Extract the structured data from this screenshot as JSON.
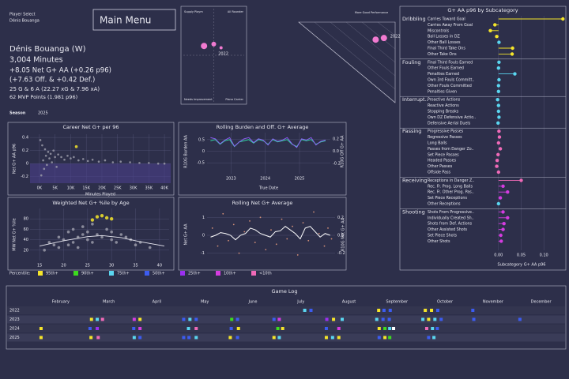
{
  "header": {
    "player_select": "Player Select",
    "player_select_value": "Dénis Bouanga",
    "menu": "Main Menu",
    "name": "Dénis Bouanga (W)",
    "minutes": "3,004 Minutes",
    "line1": "+8.05 Net G+ AA (+0.26 p96)",
    "line2": "(+7.63 Off. & +0.42 Def.)",
    "line3": "25 G & 6 A (22.27 xG & 7.96 xA)",
    "line4": "62 MVP Points (1.981 p96)",
    "season_label": "Season",
    "season": "2025"
  },
  "percentile_legend": {
    "title": "Percentile:",
    "items": [
      {
        "name": "95th+",
        "color": "#f5e52a"
      },
      {
        "name": "90th+",
        "color": "#3cdc1e"
      },
      {
        "name": "75th+",
        "color": "#5ad6f0"
      },
      {
        "name": "50th+",
        "color": "#3c5cf0"
      },
      {
        "name": "25th+",
        "color": "#9b30f0"
      },
      {
        "name": "10th+",
        "color": "#d43ce0"
      },
      {
        "name": "<10th",
        "color": "#f06ab8"
      }
    ]
  },
  "chart_data": [
    {
      "type": "quadrant",
      "quadrant_labels": [
        "Supply Playm",
        "All Rounder",
        "Needs Improvement",
        "Piano Carrier"
      ],
      "x": [
        0.47,
        0.5,
        0.49
      ],
      "y": [
        0.6,
        0.62,
        0.58
      ],
      "color": "#f07ad0",
      "point_label": "2022",
      "xlim": [
        0,
        1
      ],
      "ylim": [
        0,
        1
      ]
    },
    {
      "type": "triangle",
      "annotation": "More Good Performance",
      "x": [
        0.88,
        0.9
      ],
      "y": [
        0.9,
        0.92
      ],
      "color": "#f07ad0",
      "point_label": "2022",
      "xlim": [
        0,
        1
      ],
      "ylim": [
        0,
        1
      ]
    },
    {
      "type": "lollipop",
      "title": "G+ AA p96 by Subcategory",
      "x_label": "Subcategory G+ AA p96",
      "xlim": [
        -0.045,
        0.145
      ],
      "xticks": [
        {
          "value": 0,
          "label": "0.00"
        },
        0.05,
        {
          "value": 0.1,
          "label": "0.10"
        }
      ],
      "groups": [
        {
          "name": "Dribbling",
          "categories": [
            "Carries Toward Goal",
            "Carries Away From Goal",
            "Miscontrols",
            "Ball Losses in DZ",
            "Other Ball Losses",
            "Final Third Take Ons",
            "Other Take Ons"
          ],
          "values": [
            0.142,
            -0.008,
            -0.018,
            -0.004,
            0.001,
            0.031,
            0.03
          ],
          "colors": [
            "#f5e52a",
            "#f5e52a",
            "#f5e52a",
            "#f5e52a",
            "#5ad6f0",
            "#f5e52a",
            "#f5e52a"
          ]
        },
        {
          "name": "Fouling",
          "categories": [
            "Final Third Fouls Earned",
            "Other Fouls Earned",
            "Penalties Earned",
            "Own 3rd Fouls Committ..",
            "Other Fouls Committed",
            "Penalties Given"
          ],
          "values": [
            0.001,
            0,
            0.036,
            0.001,
            0,
            0
          ],
          "colors": [
            "#5ad6f0",
            "#5ad6f0",
            "#5ad6f0",
            "#5ad6f0",
            "#5ad6f0",
            "#5ad6f0"
          ]
        },
        {
          "name": "Interrupt..",
          "categories": [
            "Proactive Actions",
            "Reactive Actions",
            "Stopping Breaks",
            "Own DZ Defensive Actio..",
            "Defensive Aerial Duels"
          ],
          "values": [
            -0.002,
            0,
            0,
            0.001,
            -0.001
          ],
          "colors": [
            "#5ad6f0",
            "#5ad6f0",
            "#5ad6f0",
            "#5ad6f0",
            "#5ad6f0"
          ]
        },
        {
          "name": "Passing",
          "categories": [
            "Progressive Passes",
            "Regressive Passes",
            "Long Balls",
            "Passes from Danger Zo..",
            "Set Piece Passes",
            "Headed Passes",
            "Other Passes",
            "Offside Pass"
          ],
          "values": [
            0.001,
            0.002,
            0,
            0.004,
            -0.001,
            -0.003,
            -0.004,
            0
          ],
          "colors": [
            "#f06ab8",
            "#f06ab8",
            "#f06ab8",
            "#f06ab8",
            "#f06ab8",
            "#f06ab8",
            "#f06ab8",
            "#f06ab8"
          ]
        },
        {
          "name": "Receiving",
          "categories": [
            "Receptions in Danger Z..",
            "Rec. Fr. Prog. Long Balls",
            "Rec. Fr. Other Prog. Pas..",
            "Set Piece Receptions",
            "Other Receptions"
          ],
          "values": [
            0.05,
            0.01,
            0.02,
            0.004,
            0
          ],
          "colors": [
            "#f06ab8",
            "#d43ce0",
            "#d43ce0",
            "#d43ce0",
            "#5ad6f0"
          ]
        },
        {
          "name": "Shooting",
          "categories": [
            "Shots From Progressive..",
            "Individually Created Sh..",
            "Shots from Def. Actions",
            "Other Assisted Shots",
            "Set Piece Shots",
            "Other Shots"
          ],
          "values": [
            0.01,
            0.02,
            0.012,
            0.01,
            0.005,
            0.006
          ],
          "colors": [
            "#d43ce0",
            "#d43ce0",
            "#d43ce0",
            "#d43ce0",
            "#d43ce0",
            "#d43ce0"
          ]
        }
      ]
    },
    {
      "type": "scatter",
      "title": "Career Net G+ per 96",
      "x_label": "Minutes Played",
      "y_label": "Net G+ AA p96",
      "xlim": [
        -3000,
        42000
      ],
      "ylim": [
        -0.3,
        0.45
      ],
      "xticks": [
        {
          "value": 0,
          "label": "0K"
        },
        {
          "value": 5000,
          "label": "5K"
        },
        {
          "value": 10000,
          "label": "10K"
        },
        {
          "value": 15000,
          "label": "15K"
        },
        {
          "value": 20000,
          "label": "20K"
        },
        {
          "value": 25000,
          "label": "25K"
        },
        {
          "value": 30000,
          "label": "30K"
        },
        {
          "value": 35000,
          "label": "35K"
        },
        {
          "value": 40000,
          "label": "40K"
        }
      ],
      "yticks": [
        -0.2,
        0,
        0.2,
        0.4
      ],
      "points": {
        "color": "#9a9aa8",
        "x": [
          300,
          600,
          900,
          1200,
          1500,
          1800,
          2100,
          2400,
          2800,
          3200,
          3600,
          4000,
          4500,
          5000,
          5500,
          6000,
          7000,
          8000,
          9000,
          10000,
          11000,
          12500,
          14000,
          15500,
          17000,
          19000,
          21000,
          23500,
          26000,
          29000,
          32000,
          35000,
          38000,
          40000
        ],
        "y": [
          0.36,
          -0.18,
          0.28,
          0.05,
          -0.08,
          0.22,
          0.12,
          -0.02,
          0.18,
          0.08,
          0.15,
          0.02,
          0.2,
          0.1,
          -0.05,
          0.14,
          0.1,
          0.06,
          0.12,
          0.08,
          0.1,
          0.05,
          0.07,
          0.04,
          0.06,
          0.03,
          0.05,
          0.02,
          0.03,
          0.02,
          0.01,
          0.01,
          0,
          0
        ]
      },
      "highlight": {
        "color": "#f5e52a",
        "x": [
          11800
        ],
        "y": [
          0.26
        ]
      }
    },
    {
      "type": "dual_line",
      "title": "Rolling Burden and Off. G+ Average",
      "x_label": "True Date",
      "y_label": "R10G Burden AA",
      "y2_label": "R10G Off G+ AA",
      "xlim": [
        2022.3,
        2025.9
      ],
      "xticks": [
        2023,
        2024,
        2025
      ],
      "ylim": [
        -0.8,
        0.8
      ],
      "yticks": [
        -0.5,
        0,
        0.5
      ],
      "y2lim": [
        -0.3,
        0.3
      ],
      "y2ticks": [
        -0.2,
        {
          "value": 0,
          "label": "0.0"
        },
        0.2
      ],
      "x": [
        2022.4,
        2022.54,
        2022.68,
        2022.82,
        2022.96,
        2023.1,
        2023.24,
        2023.38,
        2023.52,
        2023.66,
        2023.8,
        2023.94,
        2024.08,
        2024.22,
        2024.36,
        2024.5,
        2024.64,
        2024.78,
        2024.92,
        2025.06,
        2025.2,
        2025.34,
        2025.48,
        2025.62,
        2025.76
      ],
      "series": [
        {
          "color": "#2fd6a0",
          "values": [
            0.45,
            0.5,
            0.3,
            0.45,
            0.5,
            0.2,
            0.4,
            0.45,
            0.5,
            0.35,
            0.5,
            0.45,
            0.3,
            0.5,
            0.4,
            0.45,
            0.5,
            0.3,
            0.2,
            0.5,
            0.45,
            0.5,
            0.3,
            0.4,
            0.45
          ]
        },
        {
          "color": "#8a5cf0",
          "axis": "y2",
          "values": [
            0.22,
            0.2,
            0.12,
            0.18,
            0.22,
            0.08,
            0.15,
            0.2,
            0.22,
            0.14,
            0.2,
            0.18,
            0.1,
            0.2,
            0.16,
            0.18,
            0.22,
            0.12,
            0.06,
            0.2,
            0.18,
            0.22,
            0.1,
            0.16,
            0.18
          ]
        }
      ]
    },
    {
      "type": "age_scatter",
      "title": "Weighted Net G+ %ile by Age",
      "y_label": "MW Net G+ %ile",
      "xlim": [
        13,
        42
      ],
      "ylim": [
        0,
        100
      ],
      "xticks": [
        15,
        20,
        25,
        30,
        35,
        40
      ],
      "yticks": [
        20,
        40,
        60,
        80
      ],
      "points": {
        "color": "#9a9aa8",
        "x": [
          16,
          17,
          18,
          19,
          19,
          20,
          21,
          21,
          22,
          22,
          23,
          23,
          24,
          24,
          25,
          25,
          26,
          26,
          27,
          28,
          29,
          30,
          30,
          31,
          32,
          33,
          34,
          35,
          36,
          38
        ],
        "y": [
          20,
          35,
          30,
          45,
          25,
          40,
          55,
          30,
          35,
          60,
          45,
          25,
          50,
          65,
          40,
          55,
          35,
          70,
          50,
          45,
          60,
          40,
          55,
          35,
          50,
          45,
          40,
          30,
          35,
          25
        ]
      },
      "highlight": {
        "color": "#f5e52a",
        "x": [
          26,
          27,
          28,
          29,
          30
        ],
        "y": [
          78,
          84,
          86,
          82,
          80
        ]
      },
      "trend": {
        "color": "#e8e8f0",
        "x": [
          15,
          20,
          25,
          28,
          32,
          36,
          41
        ],
        "y": [
          28,
          38,
          46,
          48,
          44,
          36,
          28
        ]
      }
    },
    {
      "type": "point_line",
      "title": "Rolling Net G+ Average",
      "y_label": "Net G+ AA",
      "y2_label": "R10G Net G+ AA",
      "xlim": [
        2022.3,
        2025.9
      ],
      "ylim": [
        -1.5,
        1.5
      ],
      "yticks": [
        -1,
        0,
        1
      ],
      "y2lim": [
        -0.3,
        0.3
      ],
      "y2ticks": [
        -0.2,
        {
          "value": 0,
          "label": "0.0"
        },
        0.2
      ],
      "points": {
        "color": "#f0a080",
        "x": [
          2022.45,
          2022.6,
          2022.75,
          2022.9,
          2023.05,
          2023.2,
          2023.35,
          2023.5,
          2023.65,
          2023.8,
          2023.95,
          2024.1,
          2024.25,
          2024.4,
          2024.55,
          2024.7,
          2024.85,
          2025.0,
          2025.15,
          2025.3,
          2025.45,
          2025.6,
          2025.7,
          2025.8
        ],
        "y": [
          0.4,
          -0.6,
          1.2,
          -0.3,
          0.6,
          -1.0,
          0.2,
          0.8,
          -0.4,
          1.0,
          -0.8,
          0.3,
          -0.5,
          0.9,
          -0.2,
          0.5,
          -1.1,
          0.7,
          -0.3,
          1.3,
          0.1,
          -0.6,
          0.4,
          -0.2
        ]
      },
      "line": {
        "color": "#ffffff",
        "axis": "y2",
        "x": [
          2022.4,
          2022.54,
          2022.68,
          2022.82,
          2022.96,
          2023.1,
          2023.24,
          2023.38,
          2023.52,
          2023.66,
          2023.8,
          2023.94,
          2024.08,
          2024.22,
          2024.36,
          2024.5,
          2024.64,
          2024.78,
          2024.92,
          2025.06,
          2025.2,
          2025.34,
          2025.48,
          2025.62,
          2025.76
        ],
        "values": [
          -0.02,
          0,
          0.03,
          0.02,
          0,
          -0.05,
          0,
          0.02,
          0.08,
          0.06,
          0.02,
          0,
          -0.02,
          0.04,
          0.05,
          0.1,
          0.06,
          0.02,
          -0.04,
          0.08,
          0.1,
          0.04,
          -0.02,
          0.02,
          0
        ]
      }
    },
    {
      "type": "game_log",
      "title": "Game Log",
      "months": [
        "February",
        "March",
        "April",
        "May",
        "June",
        "July",
        "August",
        "September",
        "October",
        "November",
        "December"
      ],
      "xlim": [
        0.9,
        12.5
      ],
      "rows": [
        {
          "year": "2022",
          "x": [
            7.08,
            7.21,
            8.62,
            8.73,
            8.86,
            9.59,
            9.72,
            9.85,
            10.58
          ],
          "colors": [
            "#5ad6f0",
            "#3c5cf0",
            "#f5e52a",
            "#3c5cf0",
            "#3c5cf0",
            "#f5e52a",
            "#f5e52a",
            "#3c5cf0",
            "#3c5cf0"
          ]
        },
        {
          "year": "2023",
          "x": [
            2.64,
            2.76,
            2.87,
            3.53,
            3.65,
            4.56,
            4.69,
            4.82,
            5.56,
            5.68,
            6.44,
            6.55,
            7.54,
            7.68,
            7.86,
            8.58,
            8.71,
            8.84,
            9.54,
            9.66,
            9.79,
            9.92,
            10.6,
            11.56
          ],
          "colors": [
            "#f5e52a",
            "#5ad6f0",
            "#f06ab8",
            "#d43ce0",
            "#f5e52a",
            "#3c5cf0",
            "#5ad6f0",
            "#3c5cf0",
            "#3cdc1e",
            "#3c5cf0",
            "#3c5cf0",
            "#d43ce0",
            "#9b30f0",
            "#f5e52a",
            "#5ad6f0",
            "#5ad6f0",
            "#3c5cf0",
            "#3c5cf0",
            "#5ad6f0",
            "#f5e52a",
            "#5ad6f0",
            "#3c5cf0",
            "#3c5cf0",
            "#3c5cf0"
          ]
        },
        {
          "year": "2024",
          "x": [
            1.59,
            2.61,
            2.76,
            3.52,
            3.65,
            4.66,
            4.82,
            5.55,
            5.7,
            6.52,
            6.62,
            7.53,
            7.79,
            8.63,
            8.75,
            8.85,
            8.93,
            9.62,
            9.74,
            9.84
          ],
          "colors": [
            "#f5e52a",
            "#3c5cf0",
            "#9b30f0",
            "#3c5cf0",
            "#d43ce0",
            "#5ad6f0",
            "#f06ab8",
            "#3c5cf0",
            "#f5e52a",
            "#3cdc1e",
            "#f5e52a",
            "#3c5cf0",
            "#d43ce0",
            "#f5e52a",
            "#3cdc1e",
            "#5ad6f0",
            "#ffffff",
            "#f06ab8",
            "#5ad6f0",
            "#3c5cf0"
          ]
        },
        {
          "year": "2025",
          "x": [
            1.59,
            2.63,
            2.78,
            3.53,
            3.65,
            4.56,
            4.67,
            4.82,
            5.53,
            5.68,
            6.44,
            6.55,
            7.53,
            7.66,
            7.79,
            8.63,
            8.75,
            8.85,
            9.66,
            9.77
          ],
          "colors": [
            "#f5e52a",
            "#f5e52a",
            "#f06ab8",
            "#5ad6f0",
            "#3c5cf0",
            "#3c5cf0",
            "#3c5cf0",
            "#5ad6f0",
            "#f5e52a",
            "#3c5cf0",
            "#f5e52a",
            "#5ad6f0",
            "#f5e52a",
            "#5ad6f0",
            "#f5e52a",
            "#3c5cf0",
            "#f5e52a",
            "#3cdc1e",
            "#3c5cf0",
            "#5ad6f0"
          ]
        }
      ]
    }
  ]
}
